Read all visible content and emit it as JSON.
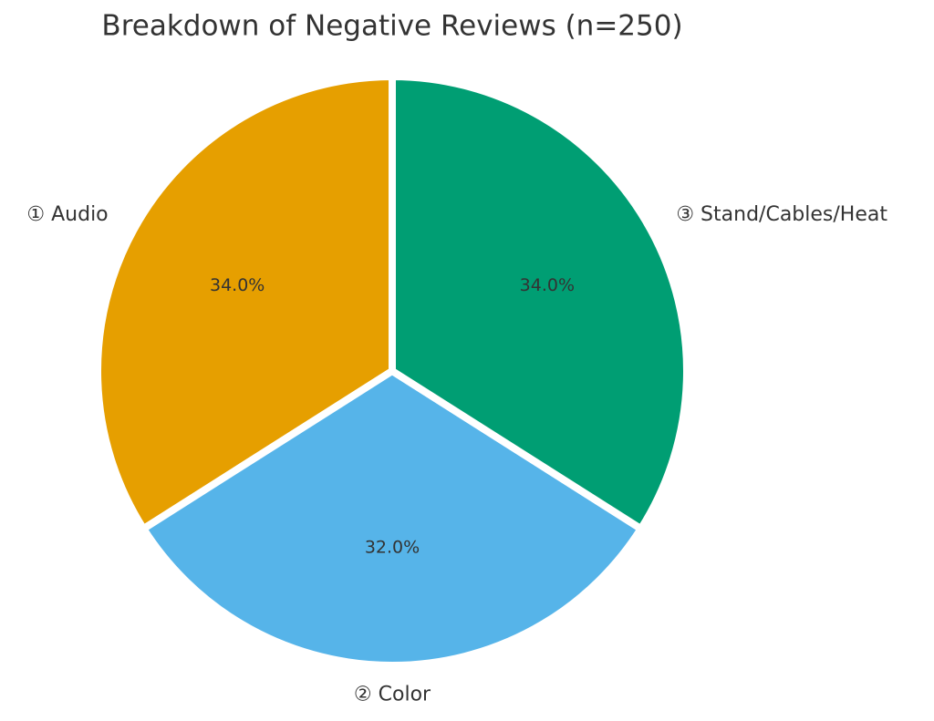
{
  "chart_data": {
    "type": "pie",
    "title": "Breakdown of Negative Reviews (n=250)",
    "categories": [
      "① Audio",
      "② Color",
      "③ Stand/Cables/Heat"
    ],
    "values": [
      34,
      32,
      34
    ],
    "value_labels": [
      "34.0%",
      "32.0%",
      "34.0%"
    ],
    "colors": [
      "#E69F00",
      "#56B4E9",
      "#009E73"
    ]
  }
}
